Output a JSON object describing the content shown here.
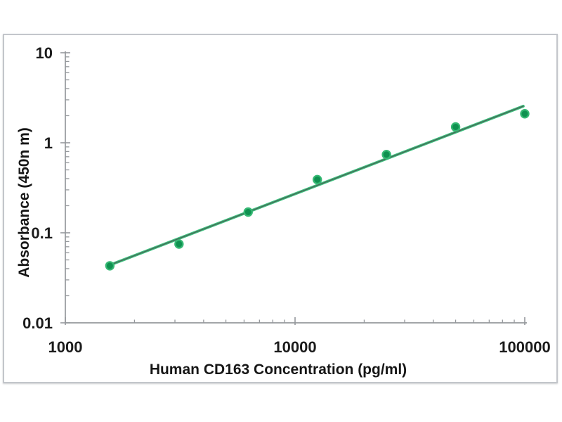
{
  "figure": {
    "background": "#ffffff",
    "frame_border_color": "#c3c6cb",
    "axis_color": "#95989c",
    "label_color": "#1b1b1b"
  },
  "chart_data": {
    "type": "scatter",
    "title": "",
    "xlabel": "Human CD163 Concentration (pg/ml)",
    "ylabel": "Absorbance (450n m)",
    "x_scale": "log",
    "y_scale": "log",
    "xlim": [
      1000,
      100000
    ],
    "ylim": [
      0.01,
      10
    ],
    "grid": false,
    "legend_position": "none",
    "x_tick_values": [
      1000,
      10000,
      100000
    ],
    "x_tick_labels": [
      "1000",
      "10000",
      "100000"
    ],
    "y_tick_values": [
      10,
      1,
      0.1,
      0.01
    ],
    "y_tick_labels": [
      "10",
      "1",
      "0.1",
      "0.01"
    ],
    "series": [
      {
        "name": "standard-points",
        "type": "scatter",
        "marker": "circle",
        "marker_fill": "#0f9150",
        "marker_stroke": "#35b873",
        "x": [
          1562.5,
          3125,
          6250,
          12500,
          25000,
          50000,
          100000
        ],
        "y": [
          0.043,
          0.075,
          0.17,
          0.39,
          0.74,
          1.5,
          2.1
        ]
      },
      {
        "name": "fit-line",
        "type": "line",
        "color": "#3cc07e",
        "core_color": "#4a6456",
        "x": [
          1550,
          98500
        ],
        "y": [
          0.0435,
          2.55
        ]
      }
    ]
  }
}
